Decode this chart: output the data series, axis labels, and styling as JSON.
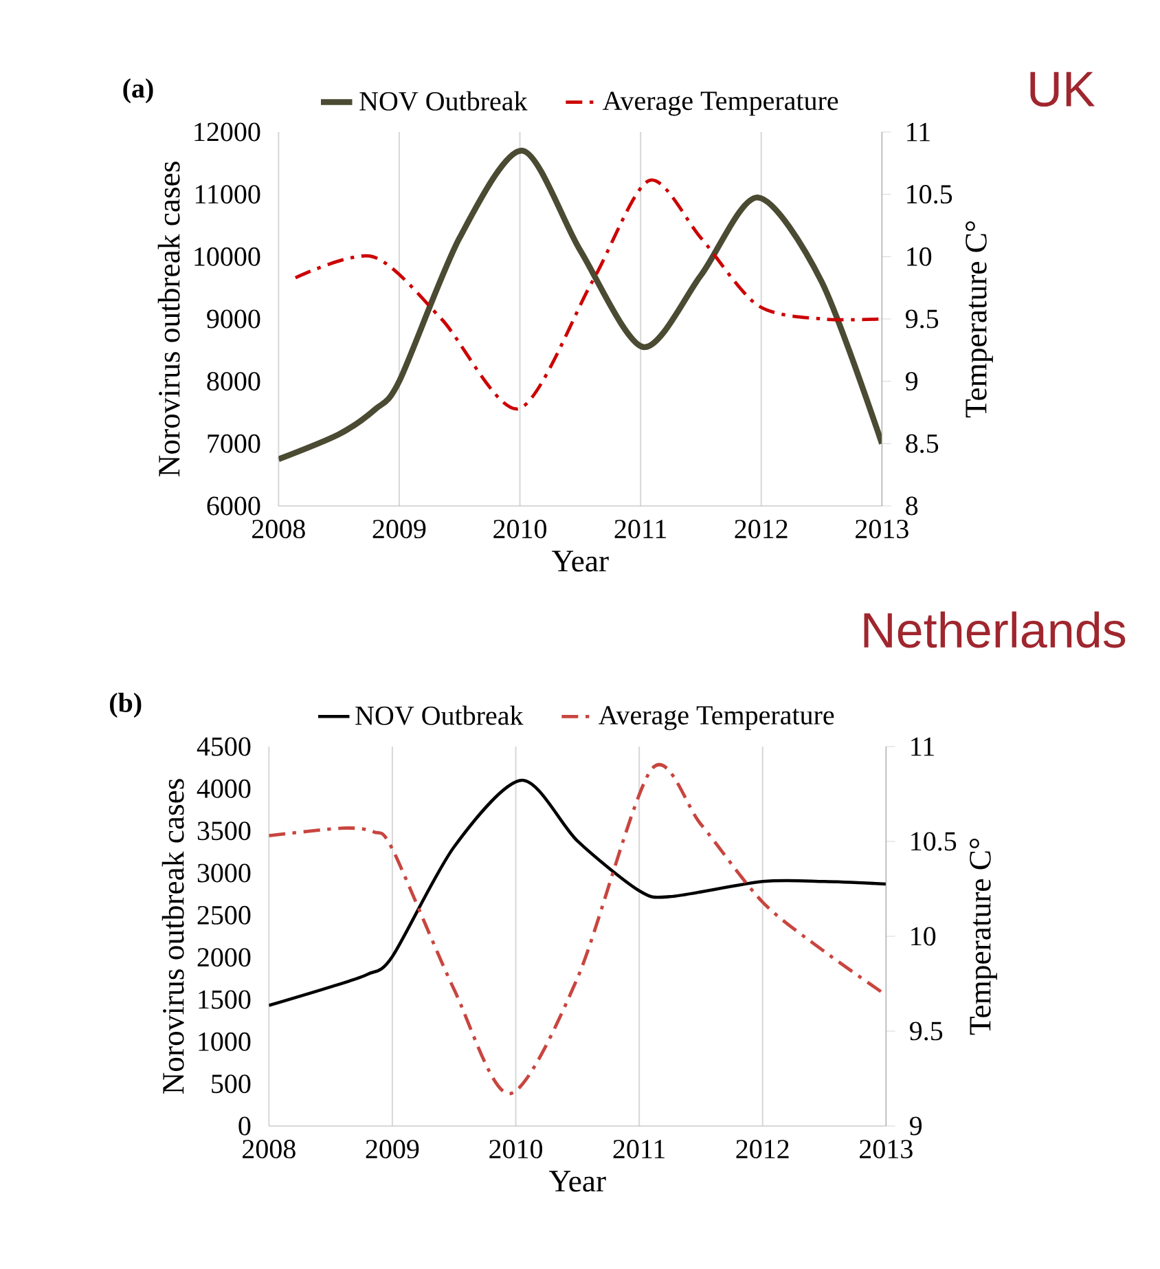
{
  "chart_data": [
    {
      "type": "line",
      "title": "(a)",
      "xlabel": "Year",
      "ylabel": "Norovirus outbreak cases",
      "y2label": "Temperature C°",
      "annotations": [
        "UK"
      ],
      "xlim": [
        2008,
        2013
      ],
      "xticks": [
        2008,
        2009,
        2010,
        2011,
        2012,
        2013
      ],
      "ylim": [
        6000,
        12000
      ],
      "yticks": [
        6000,
        7000,
        8000,
        9000,
        10000,
        11000,
        12000
      ],
      "y2lim": [
        8,
        11
      ],
      "y2ticks": [
        8,
        8.5,
        9,
        9.5,
        10,
        10.5,
        11
      ],
      "grid": "x",
      "legend": "top",
      "series": [
        {
          "name": "NOV Outbreak",
          "color": "#4b4a32",
          "line_style": "solid",
          "x": [
            2008,
            2008.5,
            2008.8,
            2009,
            2009.5,
            2010.02,
            2010.5,
            2011.02,
            2011.5,
            2011.97,
            2012.5,
            2013
          ],
          "values": [
            6750,
            7150,
            7550,
            8000,
            10300,
            11700,
            10100,
            8550,
            9700,
            10950,
            9600,
            7000
          ]
        },
        {
          "name": "Average Temperature",
          "color": "#cc0000",
          "line_style": "dashdot",
          "axis": "y2",
          "x": [
            2008.14,
            2008.78,
            2009.35,
            2009.99,
            2010.6,
            2011.07,
            2011.5,
            2011.97,
            2012.5,
            2013
          ],
          "values": [
            9.83,
            10.0,
            9.5,
            8.78,
            9.8,
            10.61,
            10.15,
            9.61,
            9.5,
            9.5
          ]
        }
      ]
    },
    {
      "type": "line",
      "title": "(b)",
      "xlabel": "Year",
      "ylabel": "Norovirus outbreak cases",
      "y2label": "Temperature C°",
      "annotations": [
        "Netherlands"
      ],
      "xlim": [
        2008,
        2013
      ],
      "xticks": [
        2008,
        2009,
        2010,
        2011,
        2012,
        2013
      ],
      "ylim": [
        0,
        4500
      ],
      "yticks": [
        0,
        500,
        1000,
        1500,
        2000,
        2500,
        3000,
        3500,
        4000,
        4500
      ],
      "y2lim": [
        9,
        11
      ],
      "y2ticks": [
        9,
        9.5,
        10,
        10.5,
        11
      ],
      "grid": "x",
      "legend": "top",
      "series": [
        {
          "name": "NOV Outbreak",
          "color": "#000000",
          "line_style": "solid",
          "x": [
            2008,
            2008.5,
            2008.8,
            2009,
            2009.5,
            2010.05,
            2010.5,
            2011,
            2011.25,
            2012,
            2012.5,
            2013
          ],
          "values": [
            1430,
            1650,
            1800,
            2010,
            3310,
            4100,
            3380,
            2790,
            2720,
            2900,
            2900,
            2870
          ]
        },
        {
          "name": "Average Temperature",
          "color": "#c8453f",
          "line_style": "dashdot",
          "axis": "y2",
          "x": [
            2008,
            2008.6,
            2008.85,
            2009,
            2009.5,
            2009.95,
            2010.5,
            2011.1,
            2011.5,
            2012,
            2012.5,
            2013
          ],
          "values": [
            10.53,
            10.57,
            10.55,
            10.46,
            9.72,
            9.17,
            9.78,
            10.88,
            10.59,
            10.18,
            9.92,
            9.69
          ]
        }
      ]
    }
  ]
}
